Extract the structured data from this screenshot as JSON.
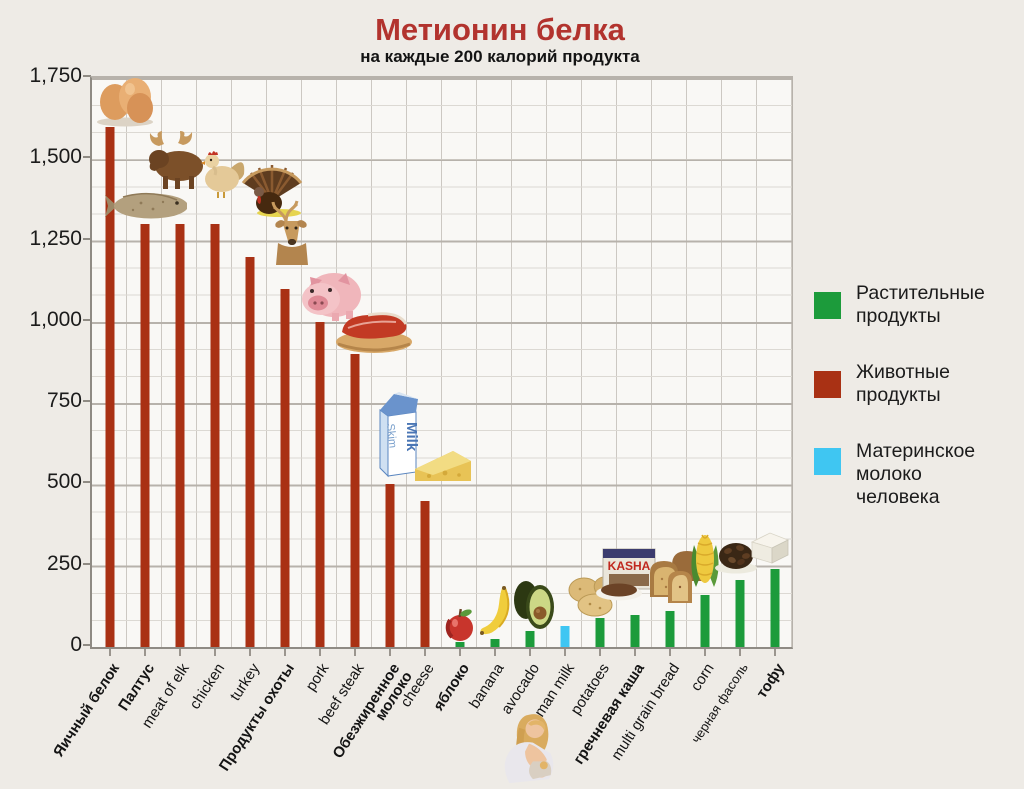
{
  "title": "Метионин белка",
  "subtitle": "на каждые 200 калорий продукта",
  "colors": {
    "animal": "#a93114",
    "plant": "#1c9b3b",
    "milk": "#3fc6f2",
    "title_red": "#b2332e"
  },
  "y_axis": {
    "ticks": [
      "1,750",
      "1,500",
      "1,250",
      "1,000",
      "750",
      "500",
      "250",
      "0"
    ],
    "min": 0,
    "max": 1750
  },
  "legend": [
    {
      "label": "Растительные\nпродукты",
      "color": "#1c9b3b",
      "series": "plant"
    },
    {
      "label": "Животные\nпродукты",
      "color": "#a93114",
      "series": "animal"
    },
    {
      "label": "Материнское\nмолоко\nчеловека",
      "color": "#3fc6f2",
      "series": "milk"
    }
  ],
  "images": {
    "milk_carton_front": "Milk",
    "milk_carton_side": "Skim",
    "kasha_box": "KASHA"
  },
  "chart_data": {
    "type": "bar",
    "title": "Метионин белка",
    "subtitle": "на каждые 200 калорий продукта",
    "xlabel": "",
    "ylabel": "",
    "ylim": [
      0,
      1750
    ],
    "grid": true,
    "legend_position": "right",
    "series_legend": [
      "Растительные продукты",
      "Животные продукты",
      "Материнское молоко человека"
    ],
    "items": [
      {
        "label": "Яичный белок",
        "value": 1600,
        "type": "animal",
        "bold": true
      },
      {
        "label": "Палтус",
        "value": 1300,
        "type": "animal",
        "bold": true
      },
      {
        "label": "meat of elk",
        "value": 1300,
        "type": "animal",
        "bold": false
      },
      {
        "label": "chicken",
        "value": 1300,
        "type": "animal",
        "bold": false
      },
      {
        "label": "turkey",
        "value": 1200,
        "type": "animal",
        "bold": false
      },
      {
        "label": "Продукты охоты",
        "value": 1100,
        "type": "animal",
        "bold": true
      },
      {
        "label": "pork",
        "value": 1000,
        "type": "animal",
        "bold": false
      },
      {
        "label": "beef steak",
        "value": 900,
        "type": "animal",
        "bold": false
      },
      {
        "label": "Обезжиренное молоко",
        "value": 500,
        "type": "animal",
        "bold": true,
        "wrap": true
      },
      {
        "label": "cheese",
        "value": 450,
        "type": "animal",
        "bold": false
      },
      {
        "label": "яблоко",
        "value": 15,
        "type": "plant",
        "bold": true
      },
      {
        "label": "banana",
        "value": 25,
        "type": "plant",
        "bold": false
      },
      {
        "label": "avocado",
        "value": 50,
        "type": "plant",
        "bold": false
      },
      {
        "label": "human milk",
        "value": 65,
        "type": "milk",
        "bold": false
      },
      {
        "label": "potatoes",
        "value": 90,
        "type": "plant",
        "bold": false
      },
      {
        "label": "гречневая каша",
        "value": 100,
        "type": "plant",
        "bold": true
      },
      {
        "label": "multi grain bread",
        "value": 110,
        "type": "plant",
        "bold": false
      },
      {
        "label": "corn",
        "value": 160,
        "type": "plant",
        "bold": false
      },
      {
        "label": "черная фасоль",
        "value": 205,
        "type": "plant",
        "bold": false
      },
      {
        "label": "тофу",
        "value": 240,
        "type": "plant",
        "bold": true
      }
    ]
  }
}
